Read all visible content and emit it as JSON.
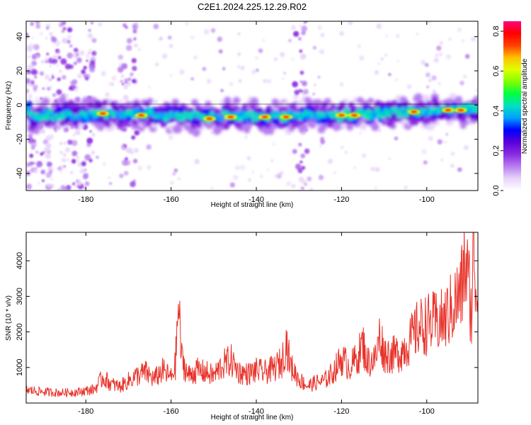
{
  "chart_data": [
    {
      "type": "heatmap",
      "title": "C2E1.2024.225.12.29.R02",
      "xlabel": "Height of straight line (km)",
      "ylabel": "Frequency (Hz)",
      "xlim": [
        -194,
        -88
      ],
      "ylim": [
        -50,
        49
      ],
      "x_ticks": [
        -180,
        -160,
        -140,
        -120,
        -100
      ],
      "y_ticks": [
        -40,
        -20,
        0,
        20,
        40
      ],
      "grid": false,
      "colorbar": {
        "label": "Normalized spectral amplitude",
        "range": [
          0,
          0.85
        ],
        "ticks": [
          0.0,
          0.2,
          0.4,
          0.6,
          0.8
        ],
        "colormap": [
          "#ffffff",
          "#e8d4fa",
          "#b77ef0",
          "#8a2be2",
          "#5a00d8",
          "#0000ff",
          "#00a0ff",
          "#00e0c0",
          "#00ff40",
          "#80ff00",
          "#e0ff00",
          "#ffc000",
          "#ff4000",
          "#ff0000",
          "#ff0080"
        ]
      },
      "band_center": [
        [
          -193,
          -8
        ],
        [
          -190,
          -6
        ],
        [
          -186,
          -5
        ],
        [
          -182,
          -6
        ],
        [
          -178,
          -5
        ],
        [
          -174,
          -5
        ],
        [
          -170,
          -6
        ],
        [
          -166,
          -5
        ],
        [
          -162,
          -6
        ],
        [
          -158,
          -6
        ],
        [
          -154,
          -7
        ],
        [
          -150,
          -7
        ],
        [
          -146,
          -6
        ],
        [
          -142,
          -6
        ],
        [
          -138,
          -7
        ],
        [
          -134,
          -7
        ],
        [
          -130,
          -6
        ],
        [
          -126,
          -6
        ],
        [
          -122,
          -6
        ],
        [
          -118,
          -6
        ],
        [
          -114,
          -5
        ],
        [
          -110,
          -5
        ],
        [
          -106,
          -4
        ],
        [
          -102,
          -4
        ],
        [
          -98,
          -3
        ],
        [
          -94,
          -3
        ],
        [
          -90,
          -3
        ]
      ],
      "peak_regions": [
        [
          -176,
          -5
        ],
        [
          -167,
          -6
        ],
        [
          -151,
          -8
        ],
        [
          -146,
          -7
        ],
        [
          -138,
          -7
        ],
        [
          -133,
          -7
        ],
        [
          -120,
          -6
        ],
        [
          -117,
          -6
        ],
        [
          -103,
          -4
        ],
        [
          -95,
          -3
        ],
        [
          -92,
          -3
        ]
      ],
      "noise_bands_x": [
        [
          -194,
          -178
        ],
        [
          -172,
          -168
        ],
        [
          -131,
          -128
        ]
      ]
    },
    {
      "type": "line",
      "title": "",
      "xlabel": "Height of straight line (km)",
      "ylabel": "SNR (10 * v/v)",
      "xlim": [
        -194,
        -88
      ],
      "ylim": [
        0,
        4800
      ],
      "x_ticks": [
        -180,
        -160,
        -140,
        -120,
        -100
      ],
      "y_ticks": [
        1000,
        2000,
        3000,
        4000
      ],
      "grid": false,
      "line_color": "#e8322a",
      "series": [
        {
          "x": [
            -194,
            -190,
            -186,
            -182,
            -178,
            -176,
            -174,
            -172,
            -170,
            -168,
            -166,
            -164,
            -162,
            -160,
            -159,
            -158.3,
            -157.5,
            -156,
            -154,
            -152,
            -150,
            -148,
            -146,
            -144,
            -142,
            -140,
            -138,
            -136,
            -134,
            -133,
            -132,
            -130,
            -128,
            -126,
            -124,
            -122,
            -120,
            -118,
            -116,
            -115,
            -114,
            -112,
            -111,
            -110,
            -108,
            -106,
            -104,
            -102,
            -100,
            -98,
            -96,
            -94,
            -92,
            -91,
            -90,
            -89.5,
            -89,
            -88.5,
            -88
          ],
          "values": [
            380,
            330,
            300,
            320,
            400,
            750,
            550,
            480,
            650,
            800,
            900,
            700,
            950,
            750,
            1100,
            2900,
            1300,
            800,
            950,
            900,
            800,
            1100,
            1250,
            900,
            850,
            950,
            900,
            1000,
            1200,
            1800,
            1100,
            700,
            500,
            600,
            650,
            900,
            1300,
            1050,
            1400,
            1750,
            1200,
            1300,
            2000,
            1450,
            1400,
            1500,
            1800,
            2200,
            2300,
            2350,
            2400,
            2800,
            3200,
            4100,
            3300,
            2500,
            4800,
            3500,
            2900
          ]
        }
      ]
    }
  ]
}
